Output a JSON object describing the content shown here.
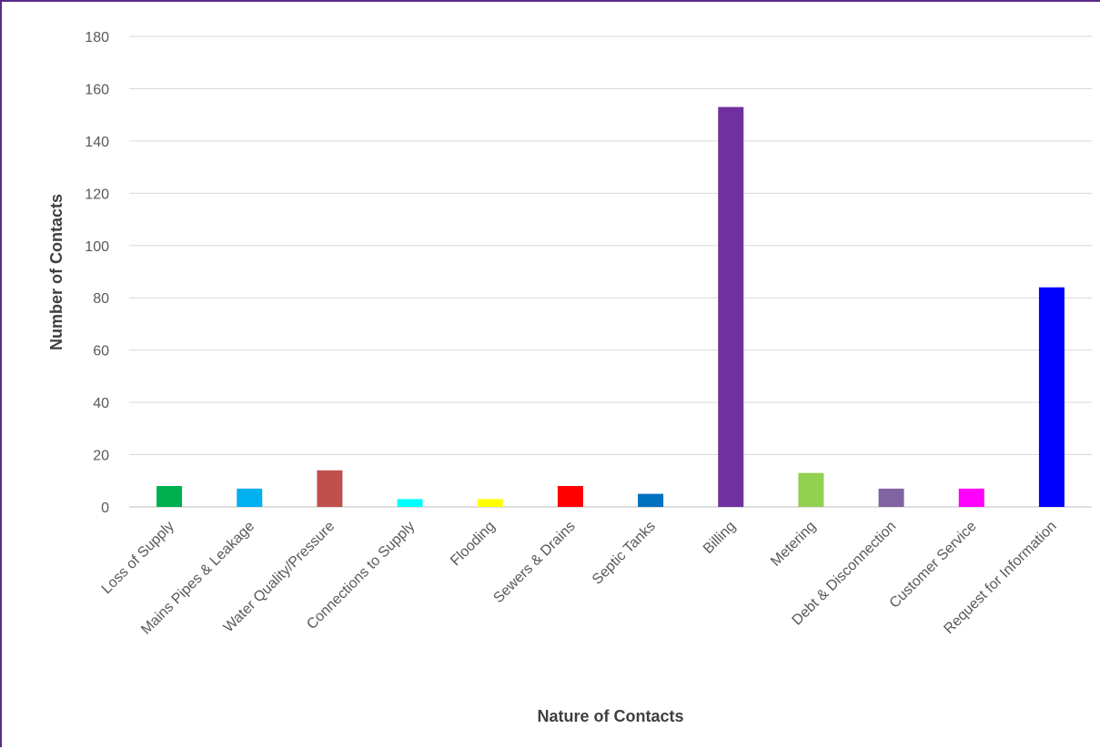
{
  "chart_data": {
    "type": "bar",
    "title": "",
    "xlabel": "Nature of Contacts",
    "ylabel": "Number of Contacts",
    "ylim": [
      0,
      180
    ],
    "y_ticks": [
      0,
      20,
      40,
      60,
      80,
      100,
      120,
      140,
      160,
      180
    ],
    "grid": true,
    "legend": "none",
    "categories": [
      "Loss of Supply",
      "Mains Pipes & Leakage",
      "Water Quality/Pressure",
      "Connections to Supply",
      "Flooding",
      "Sewers & Drains",
      "Septic Tanks",
      "Billing",
      "Metering",
      "Debt & Disconnection",
      "Customer Service",
      "Request for Information"
    ],
    "values": [
      8,
      7,
      14,
      3,
      3,
      8,
      5,
      153,
      13,
      7,
      7,
      84
    ],
    "colors": [
      "#00b050",
      "#00b0f0",
      "#c0504d",
      "#00ffff",
      "#ffff00",
      "#ff0000",
      "#0070c0",
      "#7030a0",
      "#92d050",
      "#8064a2",
      "#ff00ff",
      "#0000ff"
    ]
  }
}
